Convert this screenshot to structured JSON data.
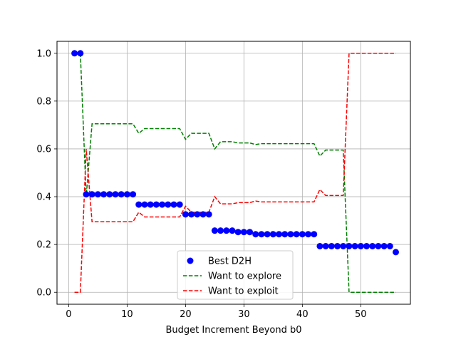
{
  "chart_data": {
    "type": "scatter+line",
    "title": "",
    "xlabel": "Budget Increment Beyond b0",
    "ylabel": "",
    "xlim": [
      -2,
      58.5
    ],
    "ylim": [
      -0.05,
      1.05
    ],
    "x_ticks": [
      0,
      10,
      20,
      30,
      40,
      50
    ],
    "y_ticks": [
      0.0,
      0.2,
      0.4,
      0.6,
      0.8,
      1.0
    ],
    "x_tick_labels": [
      "0",
      "10",
      "20",
      "30",
      "40",
      "50"
    ],
    "y_tick_labels": [
      "0.0",
      "0.2",
      "0.4",
      "0.6",
      "0.8",
      "1.0"
    ],
    "grid": true,
    "legend_position": "lower-center",
    "series": [
      {
        "name": "Best D2H",
        "kind": "scatter",
        "color": "#0000ff",
        "x": [
          1,
          2,
          3,
          4,
          5,
          6,
          7,
          8,
          9,
          10,
          11,
          12,
          13,
          14,
          15,
          16,
          17,
          18,
          19,
          20,
          21,
          22,
          23,
          24,
          25,
          26,
          27,
          28,
          29,
          30,
          31,
          32,
          33,
          34,
          35,
          36,
          37,
          38,
          39,
          40,
          41,
          42,
          43,
          44,
          45,
          46,
          47,
          48,
          49,
          50,
          51,
          52,
          53,
          54,
          55,
          56
        ],
        "y": [
          1.0,
          1.0,
          0.41,
          0.41,
          0.41,
          0.41,
          0.41,
          0.41,
          0.41,
          0.41,
          0.41,
          0.367,
          0.367,
          0.367,
          0.367,
          0.367,
          0.367,
          0.367,
          0.367,
          0.326,
          0.326,
          0.326,
          0.326,
          0.326,
          0.258,
          0.258,
          0.258,
          0.258,
          0.252,
          0.252,
          0.252,
          0.243,
          0.243,
          0.243,
          0.243,
          0.243,
          0.243,
          0.243,
          0.243,
          0.243,
          0.243,
          0.243,
          0.193,
          0.193,
          0.193,
          0.193,
          0.193,
          0.193,
          0.193,
          0.193,
          0.193,
          0.193,
          0.193,
          0.193,
          0.193,
          0.168
        ]
      },
      {
        "name": "Want to explore",
        "kind": "line",
        "style": "dashed",
        "color": "#008000",
        "x": [
          1,
          2,
          3,
          4,
          5,
          6,
          7,
          8,
          9,
          10,
          11,
          12,
          13,
          14,
          15,
          16,
          17,
          18,
          19,
          20,
          21,
          22,
          23,
          24,
          25,
          26,
          27,
          28,
          29,
          30,
          31,
          32,
          33,
          34,
          35,
          36,
          37,
          38,
          39,
          40,
          41,
          42,
          43,
          44,
          45,
          46,
          47,
          48,
          49,
          50,
          51,
          52,
          53,
          54,
          55,
          56
        ],
        "y": [
          1.0,
          1.0,
          0.4,
          0.705,
          0.705,
          0.705,
          0.705,
          0.705,
          0.705,
          0.705,
          0.705,
          0.665,
          0.685,
          0.685,
          0.685,
          0.685,
          0.685,
          0.685,
          0.685,
          0.64,
          0.665,
          0.665,
          0.665,
          0.665,
          0.6,
          0.63,
          0.63,
          0.63,
          0.625,
          0.625,
          0.625,
          0.618,
          0.622,
          0.622,
          0.622,
          0.622,
          0.622,
          0.622,
          0.622,
          0.622,
          0.622,
          0.622,
          0.57,
          0.595,
          0.595,
          0.595,
          0.595,
          0.0,
          0.0,
          0.0,
          0.0,
          0.0,
          0.0,
          0.0,
          0.0,
          0.0
        ]
      },
      {
        "name": "Want to exploit",
        "kind": "line",
        "style": "dashed",
        "color": "#ff0000",
        "x": [
          1,
          2,
          3,
          4,
          5,
          6,
          7,
          8,
          9,
          10,
          11,
          12,
          13,
          14,
          15,
          16,
          17,
          18,
          19,
          20,
          21,
          22,
          23,
          24,
          25,
          26,
          27,
          28,
          29,
          30,
          31,
          32,
          33,
          34,
          35,
          36,
          37,
          38,
          39,
          40,
          41,
          42,
          43,
          44,
          45,
          46,
          47,
          48,
          49,
          50,
          51,
          52,
          53,
          54,
          55,
          56
        ],
        "y": [
          0.0,
          0.0,
          0.6,
          0.295,
          0.295,
          0.295,
          0.295,
          0.295,
          0.295,
          0.295,
          0.295,
          0.335,
          0.315,
          0.315,
          0.315,
          0.315,
          0.315,
          0.315,
          0.315,
          0.36,
          0.335,
          0.335,
          0.335,
          0.335,
          0.4,
          0.37,
          0.37,
          0.37,
          0.375,
          0.375,
          0.375,
          0.382,
          0.378,
          0.378,
          0.378,
          0.378,
          0.378,
          0.378,
          0.378,
          0.378,
          0.378,
          0.378,
          0.43,
          0.405,
          0.405,
          0.405,
          0.405,
          1.0,
          1.0,
          1.0,
          1.0,
          1.0,
          1.0,
          1.0,
          1.0,
          1.0
        ]
      }
    ]
  }
}
